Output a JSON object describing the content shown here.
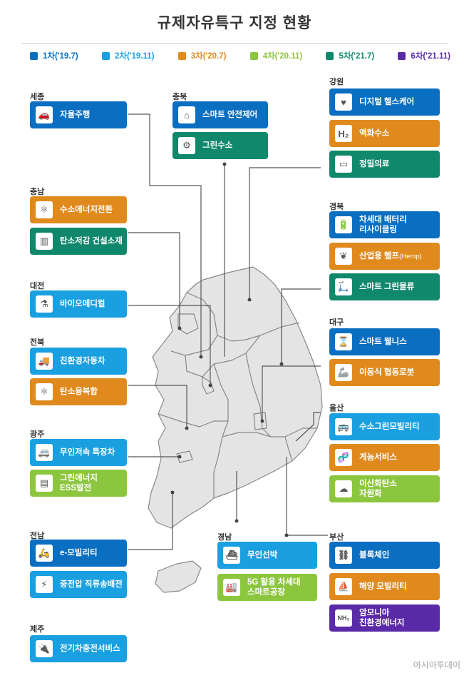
{
  "title": "규제자유특구 지정 현황",
  "legend": [
    {
      "label": "1차('19.7)",
      "color": "#0a6ec1"
    },
    {
      "label": "2차('19.11)",
      "color": "#1aa0e0"
    },
    {
      "label": "3차('20.7)",
      "color": "#e08a1e"
    },
    {
      "label": "4차('20.11)",
      "color": "#8cc63f"
    },
    {
      "label": "5차('21.7)",
      "color": "#10886c"
    },
    {
      "label": "6차('21.11)",
      "color": "#5a2aa8"
    }
  ],
  "regions": {
    "sejong": "세종",
    "chungbuk": "충북",
    "gangwon": "강원",
    "chungnam": "충남",
    "gyeongbuk": "경북",
    "daejeon": "대전",
    "daegu": "대구",
    "jeonbuk": "전북",
    "ulsan": "울산",
    "gwangju": "광주",
    "jeonnam": "전남",
    "gyeongnam": "경남",
    "busan": "부산",
    "jeju": "제주"
  },
  "cards": {
    "sejong_autonomous": {
      "label": "자율주행",
      "icon": "car-icon",
      "color": "#0a6ec1"
    },
    "chungbuk_safety": {
      "label": "스마트 안전제어",
      "icon": "safety-control-icon",
      "color": "#0a6ec1"
    },
    "chungbuk_hydrogen": {
      "label": "그린수소",
      "icon": "green-hydrogen-icon",
      "color": "#10886c"
    },
    "gangwon_health": {
      "label": "디지털 헬스케어",
      "icon": "health-icon",
      "color": "#0a6ec1"
    },
    "gangwon_liquid": {
      "label": "액화수소",
      "icon": "liquid-hydrogen-icon",
      "color": "#e08a1e"
    },
    "gangwon_precision": {
      "label": "정밀의료",
      "icon": "medical-monitor-icon",
      "color": "#10886c"
    },
    "chungnam_hydrogen": {
      "label": "수소에너지전환",
      "icon": "hydrogen-icon",
      "color": "#e08a1e"
    },
    "chungnam_carbon": {
      "label": "탄소저감 건설소재",
      "icon": "building-icon",
      "color": "#10886c"
    },
    "gyeongbuk_battery": {
      "label": "차세대 배터리\n리사이클링",
      "icon": "battery-icon",
      "color": "#0a6ec1"
    },
    "gyeongbuk_hemp_main": {
      "label": "산업용 헴프",
      "icon": "hemp-icon",
      "color": "#e08a1e"
    },
    "gyeongbuk_hemp_sub": {
      "label": "(Hemp)"
    },
    "gyeongbuk_logistics": {
      "label": "스마트 그린물류",
      "icon": "delivery-robot-icon",
      "color": "#10886c"
    },
    "daejeon_bio": {
      "label": "바이오메디컬",
      "icon": "lab-icon",
      "color": "#1aa0e0"
    },
    "daegu_wellness": {
      "label": "스마트 웰니스",
      "icon": "wellness-icon",
      "color": "#0a6ec1"
    },
    "daegu_robot": {
      "label": "이동식 협동로봇",
      "icon": "robot-arm-icon",
      "color": "#e08a1e"
    },
    "jeonbuk_vehicle": {
      "label": "친환경자동차",
      "icon": "truck-icon",
      "color": "#1aa0e0"
    },
    "jeonbuk_carbon": {
      "label": "탄소융복합",
      "icon": "atom-icon",
      "color": "#e08a1e"
    },
    "ulsan_mobility": {
      "label": "수소그린모빌리티",
      "icon": "hydrogen-mobility-icon",
      "color": "#1aa0e0"
    },
    "ulsan_genome": {
      "label": "게놈서비스",
      "icon": "dna-icon",
      "color": "#e08a1e"
    },
    "ulsan_co2": {
      "label": "이산화탄소\n자원화",
      "icon": "co2-icon",
      "color": "#8cc63f"
    },
    "gwangju_lowspeed": {
      "label": "무인저속 특장차",
      "icon": "special-vehicle-icon",
      "color": "#1aa0e0"
    },
    "gwangju_ess": {
      "label": "그린에너지\nESS발전",
      "icon": "ess-icon",
      "color": "#8cc63f"
    },
    "jeonnam_emobility": {
      "label": "e-모빌리티",
      "icon": "e-mobility-icon",
      "color": "#0a6ec1"
    },
    "jeonnam_dc": {
      "label": "중전압 직류송배전",
      "icon": "power-line-icon",
      "color": "#1aa0e0"
    },
    "gyeongnam_ship": {
      "label": "무인선박",
      "icon": "ship-icon",
      "color": "#1aa0e0"
    },
    "gyeongnam_5g": {
      "label": "5G 활용 차세대\n스마트공장",
      "icon": "factory-icon",
      "color": "#8cc63f"
    },
    "busan_blockchain": {
      "label": "블록체인",
      "icon": "blockchain-icon",
      "color": "#0a6ec1"
    },
    "busan_marine": {
      "label": "해양 모빌리티",
      "icon": "boat-icon",
      "color": "#e08a1e"
    },
    "busan_ammonia": {
      "label": "암모니아\n친환경에너지",
      "icon": "ammonia-icon",
      "color": "#5a2aa8"
    },
    "jeju_ev": {
      "label": "전기차충전서비스",
      "icon": "ev-charger-icon",
      "color": "#1aa0e0"
    }
  },
  "watermark": "아시아투데이"
}
